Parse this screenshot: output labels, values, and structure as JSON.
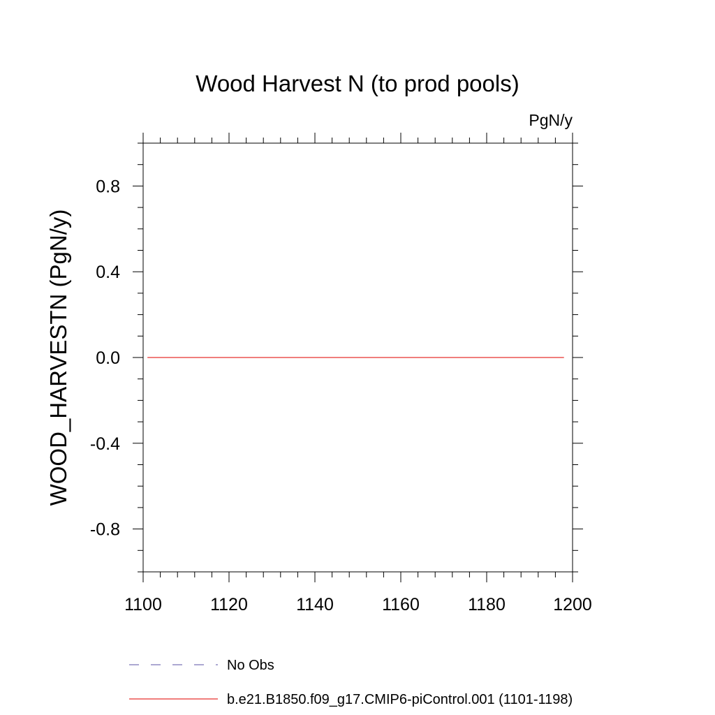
{
  "chart_data": {
    "type": "line",
    "title": "Wood Harvest N (to prod pools)",
    "units": "PgN/y",
    "xlabel": "",
    "ylabel": "WOOD_HARVESTN  (PgN/y)",
    "xlim": [
      1100,
      1200
    ],
    "ylim": [
      -1.0,
      1.0
    ],
    "x_ticks": [
      1100,
      1120,
      1140,
      1160,
      1180,
      1200
    ],
    "x_tick_labels": [
      "1100",
      "1120",
      "1140",
      "1160",
      "1180",
      "1200"
    ],
    "y_ticks": [
      -0.8,
      -0.4,
      0.0,
      0.4,
      0.8
    ],
    "y_tick_labels": [
      "-0.8",
      "-0.4",
      "0.0",
      "0.4",
      "0.8"
    ],
    "grid": false,
    "legend_position": "bottom",
    "series": [
      {
        "name": "No Obs",
        "color": "#7b74b8",
        "dash": "dashed",
        "x": [],
        "y": []
      },
      {
        "name": "b.e21.B1850.f09_g17.CMIP6-piControl.001 (1101-1198)",
        "color": "#e8302e",
        "dash": "solid",
        "x": [
          1101,
          1198
        ],
        "y": [
          0.0,
          0.0
        ]
      }
    ]
  }
}
